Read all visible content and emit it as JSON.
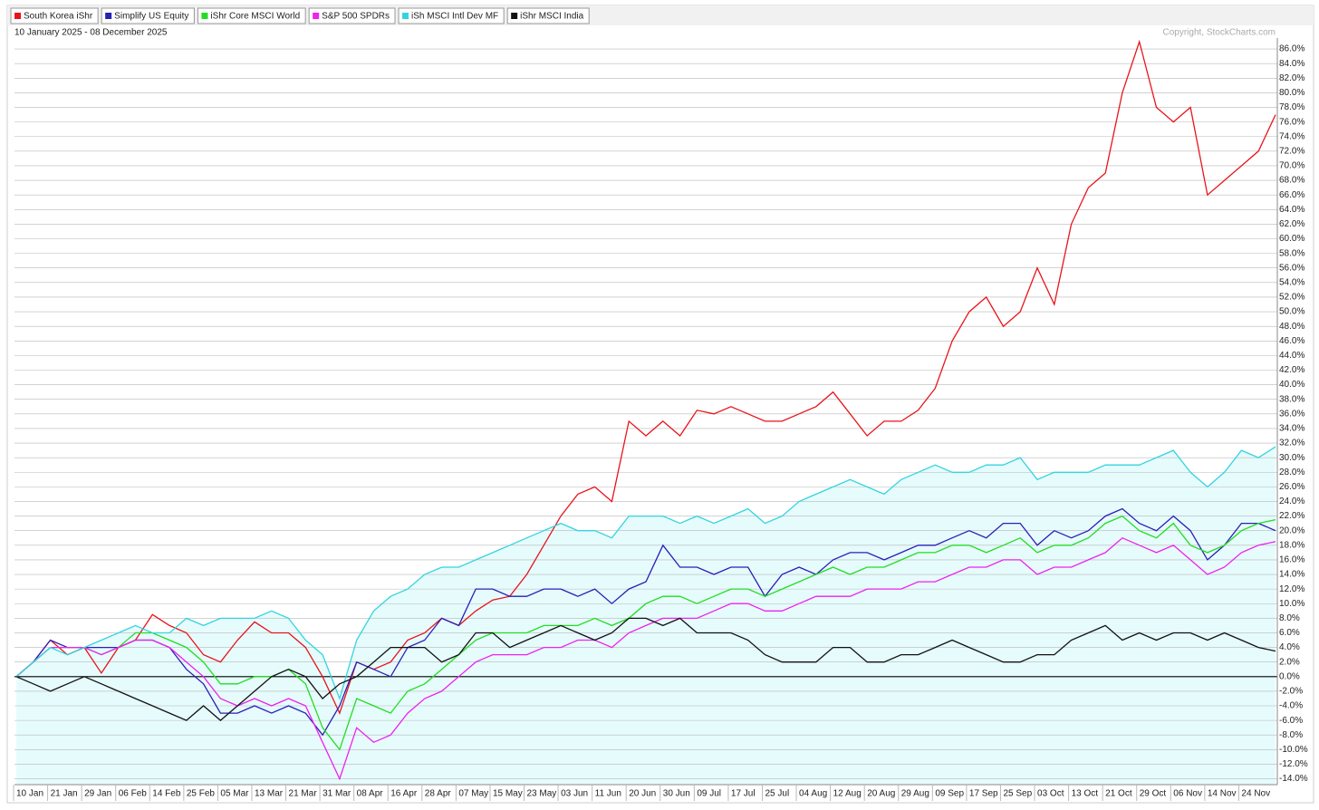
{
  "chart_data": {
    "type": "line",
    "subtitle": "10 January 2025 - 08 December 2025",
    "credit": "Copyright, StockCharts.com",
    "categories": [
      "10 Jan",
      null,
      "21 Jan",
      null,
      "29 Jan",
      null,
      "06 Feb",
      null,
      "14 Feb",
      null,
      "25 Feb",
      null,
      "05 Mar",
      null,
      "13 Mar",
      null,
      "21 Mar",
      null,
      "31 Mar",
      null,
      "08 Apr",
      null,
      "16 Apr",
      null,
      "28 Apr",
      null,
      "07 May",
      null,
      "15 May",
      null,
      "23 May",
      null,
      "03 Jun",
      null,
      "11 Jun",
      null,
      "20 Jun",
      null,
      "30 Jun",
      null,
      "09 Jul",
      null,
      "17 Jul",
      null,
      "25 Jul",
      null,
      "04 Aug",
      null,
      "12 Aug",
      null,
      "20 Aug",
      null,
      "29 Aug",
      null,
      "09 Sep",
      null,
      "17 Sep",
      null,
      "25 Sep",
      null,
      "03 Oct",
      null,
      "13 Oct",
      null,
      "21 Oct",
      null,
      "29 Oct",
      null,
      "06 Nov",
      null,
      "14 Nov",
      null,
      "24 Nov",
      null,
      null
    ],
    "ylim": [
      -14.8,
      87.5
    ],
    "yticks": [
      {
        "value": -14,
        "label": "-14.0%"
      },
      {
        "value": -12,
        "label": "-12.0%"
      },
      {
        "value": -10,
        "label": "-10.0%"
      },
      {
        "value": -8,
        "label": "-8.0%"
      },
      {
        "value": -6,
        "label": "-6.0%"
      },
      {
        "value": -4,
        "label": "-4.0%"
      },
      {
        "value": -2,
        "label": "-2.0%"
      },
      {
        "value": 0,
        "label": "0.0%"
      },
      {
        "value": 2,
        "label": "2.0%"
      },
      {
        "value": 4,
        "label": "4.0%"
      },
      {
        "value": 6,
        "label": "6.0%"
      },
      {
        "value": 8,
        "label": "8.0%"
      },
      {
        "value": 10,
        "label": "10.0%"
      },
      {
        "value": 12,
        "label": "12.0%"
      },
      {
        "value": 14,
        "label": "14.0%"
      },
      {
        "value": 16,
        "label": "16.0%"
      },
      {
        "value": 18,
        "label": "18.0%"
      },
      {
        "value": 20,
        "label": "20.0%"
      },
      {
        "value": 22,
        "label": "22.0%"
      },
      {
        "value": 24,
        "label": "24.0%"
      },
      {
        "value": 26,
        "label": "26.0%"
      },
      {
        "value": 28,
        "label": "28.0%"
      },
      {
        "value": 30,
        "label": "30.0%"
      },
      {
        "value": 32,
        "label": "32.0%"
      },
      {
        "value": 34,
        "label": "34.0%"
      },
      {
        "value": 36,
        "label": "36.0%"
      },
      {
        "value": 38,
        "label": "38.0%"
      },
      {
        "value": 40,
        "label": "40.0%"
      },
      {
        "value": 42,
        "label": "42.0%"
      },
      {
        "value": 44,
        "label": "44.0%"
      },
      {
        "value": 46,
        "label": "46.0%"
      },
      {
        "value": 48,
        "label": "48.0%"
      },
      {
        "value": 50,
        "label": "50.0%"
      },
      {
        "value": 52,
        "label": "52.0%"
      },
      {
        "value": 54,
        "label": "54.0%"
      },
      {
        "value": 56,
        "label": "56.0%"
      },
      {
        "value": 58,
        "label": "58.0%"
      },
      {
        "value": 60,
        "label": "60.0%"
      },
      {
        "value": 62,
        "label": "62.0%"
      },
      {
        "value": 64,
        "label": "64.0%"
      },
      {
        "value": 66,
        "label": "66.0%"
      },
      {
        "value": 68,
        "label": "68.0%"
      },
      {
        "value": 70,
        "label": "70.0%"
      },
      {
        "value": 72,
        "label": "72.0%"
      },
      {
        "value": 74,
        "label": "74.0%"
      },
      {
        "value": 76,
        "label": "76.0%"
      },
      {
        "value": 78,
        "label": "78.0%"
      },
      {
        "value": 80,
        "label": "80.0%"
      },
      {
        "value": 82,
        "label": "82.0%"
      },
      {
        "value": 84,
        "label": "84.0%"
      },
      {
        "value": 86,
        "label": "86.0%"
      }
    ],
    "grid": true,
    "series": [
      {
        "name": "South Korea iShr",
        "color": "#e8141b",
        "values": [
          0,
          2,
          5,
          3,
          4,
          0.5,
          4,
          5,
          8.5,
          7,
          6,
          3,
          2,
          5,
          7.5,
          6,
          6,
          4,
          0,
          -5,
          2,
          1,
          2,
          5,
          6,
          8,
          7,
          9,
          10.5,
          11,
          14,
          18,
          22,
          25,
          26,
          24,
          35,
          33,
          35,
          33,
          36.5,
          36,
          37,
          36,
          35,
          35,
          36,
          37,
          39,
          36,
          33,
          35,
          35,
          36.5,
          39.5,
          46,
          50,
          52,
          48,
          50,
          56,
          51,
          62,
          67,
          69,
          80,
          87,
          78,
          76,
          78,
          66,
          68,
          70,
          72,
          77
        ]
      },
      {
        "name": "Simplify US Equity",
        "color": "#2a1fb8",
        "values": [
          0,
          2,
          5,
          4,
          4,
          4,
          4,
          5,
          5,
          4,
          1,
          -1,
          -5,
          -5,
          -4,
          -5,
          -4,
          -5,
          -8,
          -4,
          2,
          1,
          0,
          4,
          5,
          8,
          7,
          12,
          12,
          11,
          11,
          12,
          12,
          11,
          12,
          10,
          12,
          13,
          18,
          15,
          15,
          14,
          15,
          15,
          11,
          14,
          15,
          14,
          16,
          17,
          17,
          16,
          17,
          18,
          18,
          19,
          20,
          19,
          21,
          21,
          18,
          20,
          19,
          20,
          22,
          23,
          21,
          20,
          22,
          20,
          16,
          18,
          21,
          21,
          20
        ]
      },
      {
        "name": "iShr Core MSCI World",
        "color": "#22dd22",
        "values": [
          0,
          2,
          4,
          4,
          4,
          3,
          4,
          6,
          6,
          5,
          4,
          2,
          -1,
          -1,
          0,
          0,
          1,
          -1,
          -7,
          -10,
          -3,
          -4,
          -5,
          -2,
          -1,
          1,
          3,
          5,
          6,
          6,
          6,
          7,
          7,
          7,
          8,
          7,
          8,
          10,
          11,
          11,
          10,
          11,
          12,
          12,
          11,
          12,
          13,
          14,
          15,
          14,
          15,
          15,
          16,
          17,
          17,
          18,
          18,
          17,
          18,
          19,
          17,
          18,
          18,
          19,
          21,
          22,
          20,
          19,
          21,
          18,
          17,
          18,
          20,
          21,
          21.5
        ]
      },
      {
        "name": "S&P 500 SPDRs",
        "color": "#ee22ee",
        "values": [
          0,
          2,
          4,
          4,
          4,
          3,
          4,
          5,
          5,
          4,
          2,
          0,
          -3,
          -4,
          -3,
          -4,
          -3,
          -4,
          -9,
          -14,
          -7,
          -9,
          -8,
          -5,
          -3,
          -2,
          0,
          2,
          3,
          3,
          3,
          4,
          4,
          5,
          5,
          4,
          6,
          7,
          8,
          8,
          8,
          9,
          10,
          10,
          9,
          9,
          10,
          11,
          11,
          11,
          12,
          12,
          12,
          13,
          13,
          14,
          15,
          15,
          16,
          16,
          14,
          15,
          15,
          16,
          17,
          19,
          18,
          17,
          18,
          16,
          14,
          15,
          17,
          18,
          18.5
        ]
      },
      {
        "name": "iSh MSCI Intl Dev MF",
        "color": "#33d4e0",
        "values": [
          0,
          2,
          4,
          3,
          4,
          5,
          6,
          7,
          6,
          6,
          8,
          7,
          8,
          8,
          8,
          9,
          8,
          5,
          3,
          -3,
          5,
          9,
          11,
          12,
          14,
          15,
          15,
          16,
          17,
          18,
          19,
          20,
          21,
          20,
          20,
          19,
          22,
          22,
          22,
          21,
          22,
          21,
          22,
          23,
          21,
          22,
          24,
          25,
          26,
          27,
          26,
          25,
          27,
          28,
          29,
          28,
          28,
          29,
          29,
          30,
          27,
          28,
          28,
          28,
          29,
          29,
          29,
          30,
          31,
          28,
          26,
          28,
          31,
          30,
          31.5
        ]
      },
      {
        "name": "iShr MSCI India",
        "color": "#111111",
        "values": [
          0,
          -1,
          -2,
          -1,
          0,
          -1,
          -2,
          -3,
          -4,
          -5,
          -6,
          -4,
          -6,
          -4,
          -2,
          0,
          1,
          0,
          -3,
          -1,
          0,
          2,
          4,
          4,
          4,
          2,
          3,
          6,
          6,
          4,
          5,
          6,
          7,
          6,
          5,
          6,
          8,
          8,
          7,
          8,
          6,
          6,
          6,
          5,
          3,
          2,
          2,
          2,
          4,
          4,
          2,
          2,
          3,
          3,
          4,
          5,
          4,
          3,
          2,
          2,
          3,
          3,
          5,
          6,
          7,
          5,
          6,
          5,
          6,
          6,
          5,
          6,
          5,
          4,
          3.5
        ]
      }
    ]
  }
}
